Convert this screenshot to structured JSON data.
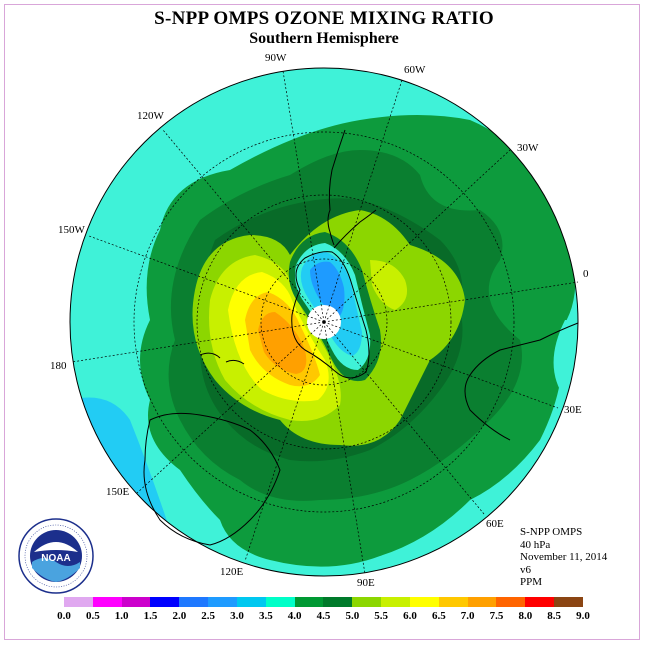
{
  "title": "S-NPP OMPS OZONE MIXING RATIO",
  "subtitle": "Southern Hemisphere",
  "longitude_labels": [
    {
      "id": "90W",
      "text": "90W"
    },
    {
      "id": "60W",
      "text": "60W"
    },
    {
      "id": "120W",
      "text": "120W"
    },
    {
      "id": "30W",
      "text": "30W"
    },
    {
      "id": "150W",
      "text": "150W"
    },
    {
      "id": "0",
      "text": "0"
    },
    {
      "id": "180",
      "text": "180"
    },
    {
      "id": "30E",
      "text": "30E"
    },
    {
      "id": "150E",
      "text": "150E"
    },
    {
      "id": "60E",
      "text": "60E"
    },
    {
      "id": "120E",
      "text": "120E"
    },
    {
      "id": "90E",
      "text": "90E"
    }
  ],
  "info": {
    "instrument": "S-NPP OMPS",
    "level": "40 hPa",
    "date": "November 11, 2014",
    "version": "v6",
    "units": "PPM"
  },
  "logo": {
    "text": "NOAA",
    "ring_text": "NATIONAL OCEANIC AND ATMOSPHERIC ADMINISTRATION • U.S. DEPARTMENT OF COMMERCE"
  },
  "colorbar": {
    "ticks": [
      "0.0",
      "0.5",
      "1.0",
      "1.5",
      "2.0",
      "2.5",
      "3.0",
      "3.5",
      "4.0",
      "4.5",
      "5.0",
      "5.5",
      "6.0",
      "6.5",
      "7.0",
      "7.5",
      "8.0",
      "8.5",
      "9.0"
    ],
    "colors": [
      "#b57edc",
      "#e0a8f0",
      "#ff00ff",
      "#cc00cc",
      "#0000ff",
      "#1e78ff",
      "#1e9bff",
      "#00c8f0",
      "#00ffc8",
      "#009933",
      "#007a2a",
      "#8cd600",
      "#c8f000",
      "#ffff00",
      "#ffc800",
      "#ffa000",
      "#ff6400",
      "#ff0000",
      "#8b4513"
    ]
  },
  "map_colors": {
    "c35": "#3ff2d8",
    "c30": "#22ccf4",
    "c25": "#1e9bff",
    "c40": "#0d9b3d",
    "c45": "#0a7f30",
    "c50": "#086b28",
    "c55": "#8cd600",
    "c60": "#c8f000",
    "c65": "#ffff00",
    "c70": "#ffc800",
    "c75": "#ffa000",
    "pole": "#ffffff"
  }
}
